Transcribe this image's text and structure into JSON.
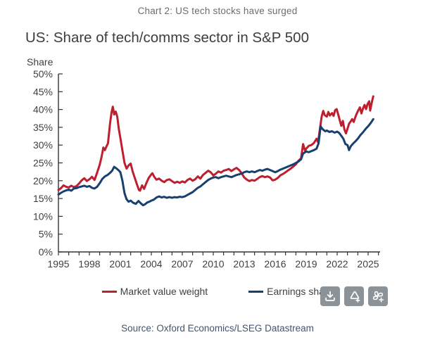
{
  "caption": "Chart 2: US tech stocks have surged",
  "title": "US: Share of tech/comms sector in S&P 500",
  "source": "Source: Oxford Economics/LSEG Datastream",
  "colors": {
    "market_value": "#be1e2d",
    "earnings": "#17406e",
    "axis": "#333333",
    "tick_text": "#404040"
  },
  "legend": {
    "market_value_label": "Market value weight",
    "earnings_label": "Earnings share"
  },
  "toolbar": {
    "buttons": [
      "download",
      "alert-add",
      "pinwheel-add"
    ]
  },
  "chart_data": {
    "type": "line",
    "title": "US: Share of tech/comms sector in S&P 500",
    "ylabel": "Share",
    "xlabel": "",
    "grid": false,
    "legend_position": "bottom",
    "xlim": [
      1995,
      2026.2
    ],
    "ylim": [
      0,
      50
    ],
    "y_ticks": [
      0,
      5,
      10,
      15,
      20,
      25,
      30,
      35,
      40,
      45,
      50
    ],
    "y_tick_labels": [
      "0%",
      "5%",
      "10%",
      "15%",
      "20%",
      "25%",
      "30%",
      "35%",
      "40%",
      "45%",
      "50%"
    ],
    "x_label_years": [
      1995,
      1998,
      2001,
      2004,
      2007,
      2010,
      2013,
      2016,
      2019,
      2022,
      2025
    ],
    "x_tick_labels": [
      "1995",
      "1998",
      "2001",
      "2004",
      "2007",
      "2010",
      "2013",
      "2016",
      "2019",
      "2022",
      "2025"
    ],
    "x_minor_tick_every_years": 1,
    "series": [
      {
        "name": "Market value weight",
        "color": "#be1e2d",
        "points": [
          [
            1995.0,
            17.4
          ],
          [
            1995.25,
            17.9
          ],
          [
            1995.5,
            18.7
          ],
          [
            1995.75,
            18.3
          ],
          [
            1996.0,
            18.1
          ],
          [
            1996.25,
            18.6
          ],
          [
            1996.5,
            18.2
          ],
          [
            1996.75,
            18.5
          ],
          [
            1997.0,
            19.2
          ],
          [
            1997.25,
            20.1
          ],
          [
            1997.5,
            20.7
          ],
          [
            1997.75,
            19.9
          ],
          [
            1998.0,
            20.4
          ],
          [
            1998.25,
            21.1
          ],
          [
            1998.5,
            20.2
          ],
          [
            1998.75,
            22.3
          ],
          [
            1999.0,
            24.5
          ],
          [
            1999.2,
            27.0
          ],
          [
            1999.35,
            29.3
          ],
          [
            1999.5,
            28.6
          ],
          [
            1999.65,
            29.6
          ],
          [
            1999.8,
            30.5
          ],
          [
            2000.0,
            36.0
          ],
          [
            2000.15,
            39.2
          ],
          [
            2000.27,
            40.8
          ],
          [
            2000.4,
            38.6
          ],
          [
            2000.55,
            39.4
          ],
          [
            2000.7,
            38.0
          ],
          [
            2000.85,
            34.5
          ],
          [
            2001.0,
            32.0
          ],
          [
            2001.2,
            28.5
          ],
          [
            2001.4,
            25.0
          ],
          [
            2001.6,
            23.4
          ],
          [
            2001.8,
            24.3
          ],
          [
            2002.0,
            24.8
          ],
          [
            2002.2,
            22.5
          ],
          [
            2002.4,
            20.8
          ],
          [
            2002.6,
            19.0
          ],
          [
            2002.8,
            17.4
          ],
          [
            2002.9,
            17.2
          ],
          [
            2003.1,
            18.7
          ],
          [
            2003.3,
            17.7
          ],
          [
            2003.5,
            19.2
          ],
          [
            2003.75,
            20.8
          ],
          [
            2004.0,
            21.8
          ],
          [
            2004.1,
            22.1
          ],
          [
            2004.3,
            21.0
          ],
          [
            2004.5,
            20.3
          ],
          [
            2004.75,
            20.6
          ],
          [
            2005.0,
            20.0
          ],
          [
            2005.25,
            19.6
          ],
          [
            2005.5,
            20.2
          ],
          [
            2005.75,
            20.4
          ],
          [
            2006.0,
            19.9
          ],
          [
            2006.25,
            19.4
          ],
          [
            2006.5,
            19.7
          ],
          [
            2006.75,
            19.4
          ],
          [
            2007.0,
            19.8
          ],
          [
            2007.25,
            19.5
          ],
          [
            2007.5,
            20.2
          ],
          [
            2007.75,
            20.6
          ],
          [
            2008.0,
            20.0
          ],
          [
            2008.25,
            20.4
          ],
          [
            2008.5,
            21.2
          ],
          [
            2008.75,
            20.6
          ],
          [
            2009.0,
            21.6
          ],
          [
            2009.25,
            22.2
          ],
          [
            2009.5,
            22.8
          ],
          [
            2009.75,
            22.4
          ],
          [
            2010.0,
            21.5
          ],
          [
            2010.25,
            22.0
          ],
          [
            2010.5,
            22.6
          ],
          [
            2010.75,
            22.3
          ],
          [
            2011.0,
            22.8
          ],
          [
            2011.25,
            23.0
          ],
          [
            2011.5,
            23.3
          ],
          [
            2011.75,
            22.7
          ],
          [
            2012.0,
            23.2
          ],
          [
            2012.25,
            23.6
          ],
          [
            2012.5,
            23.0
          ],
          [
            2012.75,
            22.1
          ],
          [
            2013.0,
            20.9
          ],
          [
            2013.25,
            20.3
          ],
          [
            2013.5,
            19.9
          ],
          [
            2013.75,
            20.2
          ],
          [
            2014.0,
            20.0
          ],
          [
            2014.25,
            20.5
          ],
          [
            2014.5,
            21.0
          ],
          [
            2014.75,
            21.3
          ],
          [
            2015.0,
            21.0
          ],
          [
            2015.25,
            21.2
          ],
          [
            2015.5,
            20.9
          ],
          [
            2015.75,
            20.1
          ],
          [
            2016.0,
            20.3
          ],
          [
            2016.25,
            20.8
          ],
          [
            2016.5,
            21.5
          ],
          [
            2016.75,
            21.9
          ],
          [
            2017.0,
            22.4
          ],
          [
            2017.25,
            22.9
          ],
          [
            2017.5,
            23.4
          ],
          [
            2017.75,
            24.0
          ],
          [
            2018.0,
            24.6
          ],
          [
            2018.25,
            25.6
          ],
          [
            2018.5,
            26.3
          ],
          [
            2018.7,
            30.3
          ],
          [
            2018.9,
            28.3
          ],
          [
            2019.0,
            29.0
          ],
          [
            2019.25,
            29.8
          ],
          [
            2019.5,
            30.0
          ],
          [
            2019.75,
            30.6
          ],
          [
            2020.0,
            31.8
          ],
          [
            2020.15,
            30.8
          ],
          [
            2020.3,
            34.0
          ],
          [
            2020.5,
            38.0
          ],
          [
            2020.65,
            39.6
          ],
          [
            2020.8,
            38.4
          ],
          [
            2021.0,
            38.0
          ],
          [
            2021.15,
            39.3
          ],
          [
            2021.3,
            38.3
          ],
          [
            2021.5,
            39.0
          ],
          [
            2021.65,
            38.2
          ],
          [
            2021.8,
            39.8
          ],
          [
            2021.95,
            40.1
          ],
          [
            2022.1,
            38.6
          ],
          [
            2022.25,
            37.0
          ],
          [
            2022.4,
            35.4
          ],
          [
            2022.55,
            36.8
          ],
          [
            2022.7,
            34.4
          ],
          [
            2022.85,
            33.3
          ],
          [
            2023.0,
            34.6
          ],
          [
            2023.15,
            36.0
          ],
          [
            2023.3,
            36.6
          ],
          [
            2023.45,
            37.3
          ],
          [
            2023.6,
            36.5
          ],
          [
            2023.75,
            37.8
          ],
          [
            2023.9,
            38.9
          ],
          [
            2024.05,
            39.8
          ],
          [
            2024.2,
            40.6
          ],
          [
            2024.35,
            38.9
          ],
          [
            2024.5,
            40.3
          ],
          [
            2024.65,
            41.3
          ],
          [
            2024.8,
            40.1
          ],
          [
            2024.95,
            41.6
          ],
          [
            2025.1,
            42.3
          ],
          [
            2025.2,
            39.7
          ],
          [
            2025.35,
            41.9
          ],
          [
            2025.5,
            43.7
          ]
        ]
      },
      {
        "name": "Earnings share",
        "color": "#17406e",
        "points": [
          [
            1995.0,
            16.1
          ],
          [
            1995.25,
            16.6
          ],
          [
            1995.5,
            17.0
          ],
          [
            1995.75,
            17.3
          ],
          [
            1996.0,
            17.5
          ],
          [
            1996.25,
            17.2
          ],
          [
            1996.5,
            17.8
          ],
          [
            1996.75,
            17.9
          ],
          [
            1997.0,
            18.2
          ],
          [
            1997.25,
            18.4
          ],
          [
            1997.5,
            18.6
          ],
          [
            1997.75,
            18.3
          ],
          [
            1998.0,
            18.5
          ],
          [
            1998.25,
            18.0
          ],
          [
            1998.5,
            17.8
          ],
          [
            1998.75,
            18.3
          ],
          [
            1999.0,
            19.3
          ],
          [
            1999.25,
            20.5
          ],
          [
            1999.5,
            21.2
          ],
          [
            1999.75,
            21.6
          ],
          [
            2000.0,
            22.2
          ],
          [
            2000.2,
            22.8
          ],
          [
            2000.4,
            23.9
          ],
          [
            2000.6,
            23.5
          ],
          [
            2000.8,
            23.0
          ],
          [
            2001.0,
            22.4
          ],
          [
            2001.2,
            20.0
          ],
          [
            2001.4,
            16.5
          ],
          [
            2001.6,
            14.8
          ],
          [
            2001.8,
            14.1
          ],
          [
            2002.0,
            14.4
          ],
          [
            2002.25,
            13.8
          ],
          [
            2002.5,
            13.5
          ],
          [
            2002.75,
            14.3
          ],
          [
            2003.0,
            13.6
          ],
          [
            2003.2,
            13.1
          ],
          [
            2003.4,
            13.4
          ],
          [
            2003.6,
            13.9
          ],
          [
            2003.8,
            14.1
          ],
          [
            2004.0,
            14.4
          ],
          [
            2004.25,
            14.7
          ],
          [
            2004.5,
            15.3
          ],
          [
            2004.75,
            15.6
          ],
          [
            2005.0,
            15.3
          ],
          [
            2005.25,
            15.5
          ],
          [
            2005.5,
            15.2
          ],
          [
            2005.75,
            15.4
          ],
          [
            2006.0,
            15.2
          ],
          [
            2006.25,
            15.4
          ],
          [
            2006.5,
            15.3
          ],
          [
            2006.75,
            15.5
          ],
          [
            2007.0,
            15.4
          ],
          [
            2007.25,
            15.6
          ],
          [
            2007.5,
            16.0
          ],
          [
            2007.75,
            16.4
          ],
          [
            2008.0,
            16.8
          ],
          [
            2008.25,
            17.4
          ],
          [
            2008.5,
            18.0
          ],
          [
            2008.75,
            18.4
          ],
          [
            2009.0,
            19.0
          ],
          [
            2009.25,
            19.6
          ],
          [
            2009.5,
            20.2
          ],
          [
            2009.75,
            20.6
          ],
          [
            2010.0,
            20.9
          ],
          [
            2010.25,
            21.0
          ],
          [
            2010.5,
            20.7
          ],
          [
            2010.75,
            21.0
          ],
          [
            2011.0,
            21.2
          ],
          [
            2011.25,
            21.4
          ],
          [
            2011.5,
            21.2
          ],
          [
            2011.75,
            21.0
          ],
          [
            2012.0,
            21.3
          ],
          [
            2012.25,
            21.6
          ],
          [
            2012.5,
            21.8
          ],
          [
            2012.75,
            22.0
          ],
          [
            2013.0,
            22.4
          ],
          [
            2013.25,
            22.6
          ],
          [
            2013.5,
            22.4
          ],
          [
            2013.75,
            22.6
          ],
          [
            2014.0,
            22.4
          ],
          [
            2014.25,
            22.7
          ],
          [
            2014.5,
            23.0
          ],
          [
            2014.75,
            22.8
          ],
          [
            2015.0,
            23.1
          ],
          [
            2015.25,
            23.3
          ],
          [
            2015.5,
            23.0
          ],
          [
            2015.75,
            22.7
          ],
          [
            2016.0,
            22.4
          ],
          [
            2016.25,
            22.7
          ],
          [
            2016.5,
            23.1
          ],
          [
            2016.75,
            23.4
          ],
          [
            2017.0,
            23.7
          ],
          [
            2017.25,
            24.0
          ],
          [
            2017.5,
            24.3
          ],
          [
            2017.75,
            24.6
          ],
          [
            2018.0,
            25.0
          ],
          [
            2018.25,
            25.4
          ],
          [
            2018.5,
            26.0
          ],
          [
            2018.7,
            27.6
          ],
          [
            2019.0,
            28.2
          ],
          [
            2019.25,
            28.0
          ],
          [
            2019.5,
            28.3
          ],
          [
            2019.75,
            28.6
          ],
          [
            2020.0,
            29.0
          ],
          [
            2020.2,
            30.5
          ],
          [
            2020.4,
            35.3
          ],
          [
            2020.55,
            34.6
          ],
          [
            2020.7,
            34.2
          ],
          [
            2020.85,
            33.9
          ],
          [
            2021.0,
            34.1
          ],
          [
            2021.25,
            33.7
          ],
          [
            2021.5,
            33.9
          ],
          [
            2021.75,
            33.5
          ],
          [
            2022.0,
            33.8
          ],
          [
            2022.2,
            33.4
          ],
          [
            2022.4,
            32.6
          ],
          [
            2022.6,
            31.8
          ],
          [
            2022.8,
            30.3
          ],
          [
            2023.0,
            30.0
          ],
          [
            2023.15,
            28.6
          ],
          [
            2023.3,
            29.6
          ],
          [
            2023.5,
            30.3
          ],
          [
            2023.75,
            31.0
          ],
          [
            2024.0,
            31.8
          ],
          [
            2024.25,
            32.8
          ],
          [
            2024.5,
            33.6
          ],
          [
            2024.75,
            34.5
          ],
          [
            2025.0,
            35.3
          ],
          [
            2025.25,
            36.2
          ],
          [
            2025.5,
            37.3
          ]
        ]
      }
    ]
  }
}
